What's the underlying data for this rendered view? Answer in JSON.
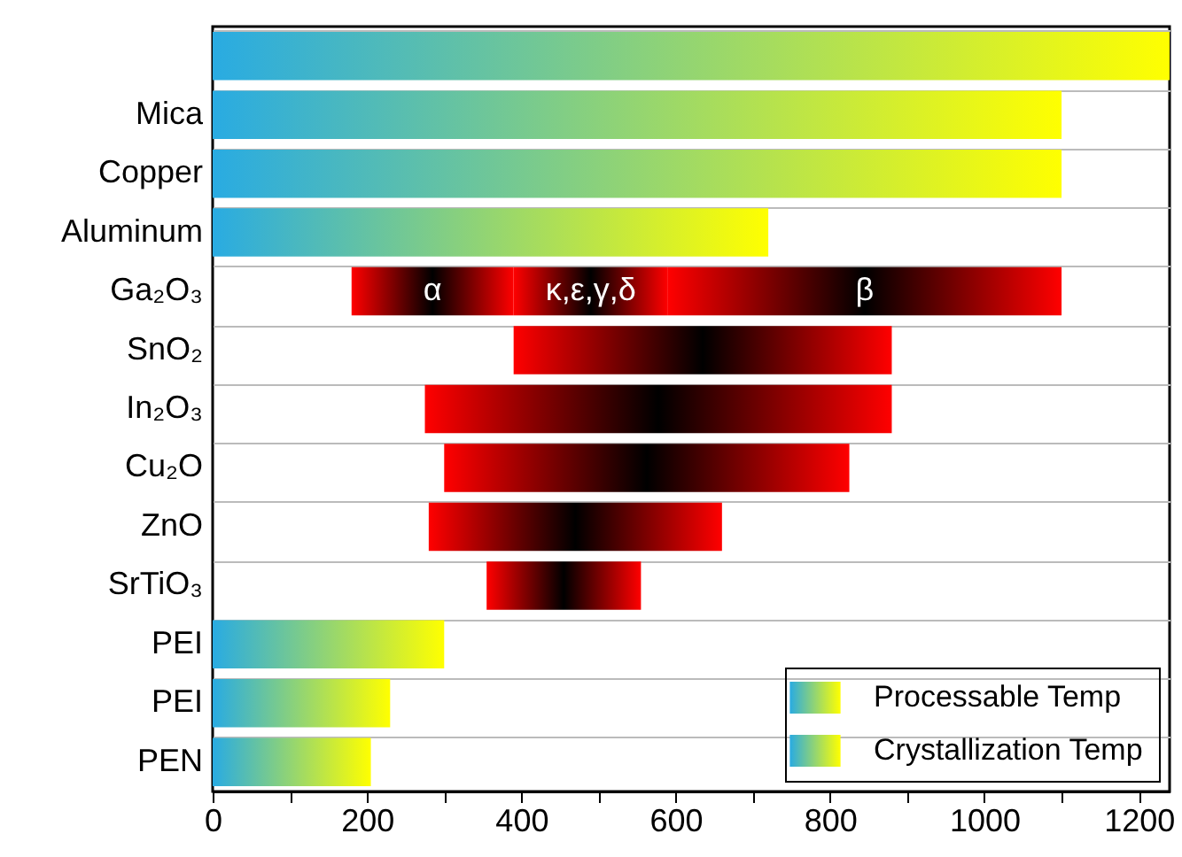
{
  "chart_data": {
    "type": "bar",
    "orientation": "horizontal",
    "categories": [
      null,
      "Mica",
      "Copper",
      "Aluminum",
      "Ga₂O₃",
      "SnO₂",
      "In₂O₃",
      "Cu₂O",
      "ZnO",
      "SrTiO₃",
      "PEI",
      "PEI",
      "PEN"
    ],
    "series": [
      {
        "name": "Processable Temp",
        "color": "#29abe2",
        "base": [
          0,
          0,
          0,
          0,
          null,
          null,
          null,
          null,
          null,
          null,
          0,
          0,
          0
        ],
        "values": [
          1240,
          1100,
          1100,
          720,
          null,
          null,
          null,
          null,
          null,
          null,
          300,
          230,
          205
        ]
      },
      {
        "name": "Crystallization Temp",
        "color": "#ff0000",
        "base": [
          null,
          null,
          null,
          null,
          180,
          390,
          275,
          300,
          280,
          355,
          null,
          null,
          null
        ],
        "values": [
          null,
          null,
          null,
          null,
          210,
          490,
          605,
          525,
          380,
          200,
          null,
          null,
          null
        ]
      },
      {
        "color": "#ff0000",
        "base": [
          null,
          null,
          null,
          null,
          390,
          null,
          null,
          null,
          null,
          null,
          null,
          null,
          null
        ],
        "values": [
          null,
          null,
          null,
          null,
          200,
          null,
          null,
          null,
          null,
          null,
          null,
          null,
          null
        ]
      },
      {
        "color": "#ff0000",
        "base": [
          null,
          null,
          null,
          null,
          590,
          null,
          null,
          null,
          null,
          null,
          null,
          null,
          null
        ],
        "values": [
          null,
          null,
          null,
          null,
          510,
          null,
          null,
          null,
          null,
          null,
          null,
          null,
          null
        ]
      }
    ],
    "annotations": [
      {
        "text": "α",
        "x": 285,
        "y": "Ga₂O₃"
      },
      {
        "text": "κ,ε,γ,δ",
        "x": 490,
        "y": "Ga₂O₃"
      },
      {
        "text": "β",
        "x": 845,
        "y": "Ga₂O₃"
      }
    ],
    "xlim": [
      0,
      1240
    ],
    "xticks": [
      0,
      {
        "value": 100,
        "label": null
      },
      200,
      {
        "value": 300,
        "label": null
      },
      400,
      {
        "value": 500,
        "label": null
      },
      600,
      {
        "value": 700,
        "label": null
      },
      800,
      {
        "value": 900,
        "label": null
      },
      1000,
      {
        "value": 1100,
        "label": null
      },
      1200
    ],
    "grid": "y",
    "legend": "bottom right"
  }
}
